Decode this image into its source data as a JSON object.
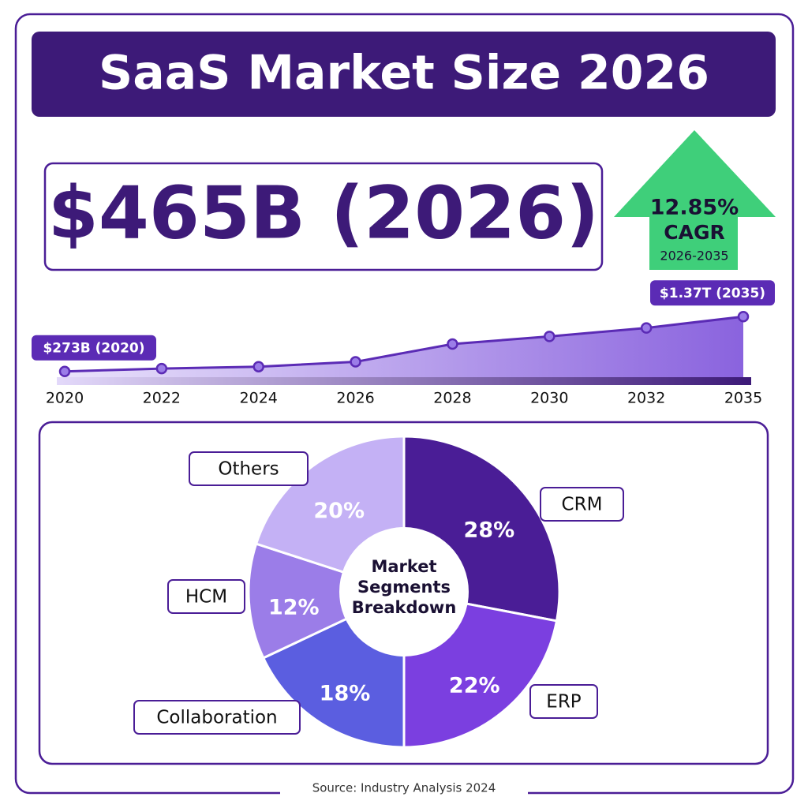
{
  "title": "SaaS Market Size 2026",
  "headline": "$465B (2026)",
  "cagr": {
    "rate": "12.85%",
    "label": "CAGR",
    "period": "2026-2035"
  },
  "source": "Source: Industry Analysis 2024",
  "chart_data": [
    {
      "type": "line",
      "categories": [
        "2020",
        "2022",
        "2024",
        "2026",
        "2028",
        "2030",
        "2032",
        "2035"
      ],
      "values": [
        273,
        330,
        368,
        465,
        821,
        973,
        1143,
        1370
      ],
      "value_labels": [
        "$273B (2020)",
        null,
        null,
        null,
        null,
        null,
        null,
        "$1.37T (2035)"
      ],
      "ylim": [
        0,
        1500
      ],
      "color": "#5b2bb5"
    },
    {
      "type": "pie",
      "title": "Market Segments Breakdown",
      "categories": [
        "CRM",
        "ERP",
        "Collaboration",
        "HCM",
        "Others"
      ],
      "values": [
        28,
        22,
        18,
        12,
        20
      ],
      "value_labels": [
        "28%",
        "22%",
        "18%",
        "12%",
        "20%"
      ],
      "colors": [
        "#4a1d96",
        "#7b3fe0",
        "#5b5ee0",
        "#9b7de8",
        "#c4b1f5"
      ]
    }
  ]
}
